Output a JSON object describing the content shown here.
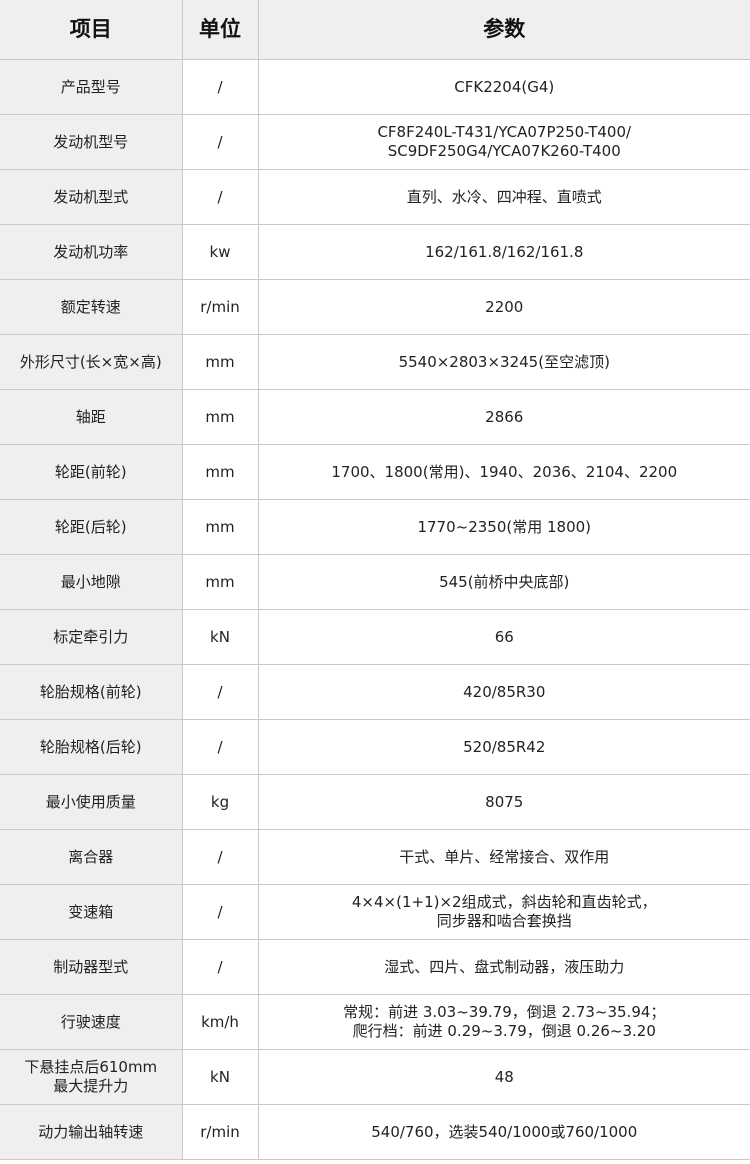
{
  "header": {
    "item": "项目",
    "unit": "单位",
    "param": "参数"
  },
  "rows": [
    {
      "item": "产品型号",
      "unit": "/",
      "value": "CFK2204(G4)"
    },
    {
      "item": "发动机型号",
      "unit": "/",
      "value": "CF8F240L-T431/YCA07P250-T400/\nSC9DF250G4/YCA07K260-T400"
    },
    {
      "item": "发动机型式",
      "unit": "/",
      "value": "直列、水冷、四冲程、直喷式"
    },
    {
      "item": "发动机功率",
      "unit": "kw",
      "value": "162/161.8/162/161.8"
    },
    {
      "item": "额定转速",
      "unit": "r/min",
      "value": "2200"
    },
    {
      "item": "外形尺寸(长×宽×高)",
      "unit": "mm",
      "value": "5540×2803×3245(至空滤顶)"
    },
    {
      "item": "轴距",
      "unit": "mm",
      "value": "2866"
    },
    {
      "item": "轮距(前轮)",
      "unit": "mm",
      "value": "1700、1800(常用)、1940、2036、2104、2200"
    },
    {
      "item": "轮距(后轮)",
      "unit": "mm",
      "value": "1770~2350(常用 1800)"
    },
    {
      "item": "最小地隙",
      "unit": "mm",
      "value": "545(前桥中央底部)"
    },
    {
      "item": "标定牵引力",
      "unit": "kN",
      "value": "66"
    },
    {
      "item": "轮胎规格(前轮)",
      "unit": "/",
      "value": "420/85R30"
    },
    {
      "item": "轮胎规格(后轮)",
      "unit": "/",
      "value": "520/85R42"
    },
    {
      "item": "最小使用质量",
      "unit": "kg",
      "value": "8075"
    },
    {
      "item": "离合器",
      "unit": "/",
      "value": "干式、单片、经常接合、双作用"
    },
    {
      "item": "变速箱",
      "unit": "/",
      "value": "4×4×(1+1)×2组成式，斜齿轮和直齿轮式，\n同步器和啮合套换挡"
    },
    {
      "item": "制动器型式",
      "unit": "/",
      "value": "湿式、四片、盘式制动器，液压助力"
    },
    {
      "item": "行驶速度",
      "unit": "km/h",
      "value": "常规：前进 3.03~39.79，倒退 2.73~35.94；\n爬行档：前进 0.29~3.79，倒退 0.26~3.20"
    },
    {
      "item": "下悬挂点后610mm\n最大提升力",
      "unit": "kN",
      "value": "48"
    },
    {
      "item": "动力输出轴转速",
      "unit": "r/min",
      "value": "540/760，选装540/1000或760/1000"
    }
  ]
}
